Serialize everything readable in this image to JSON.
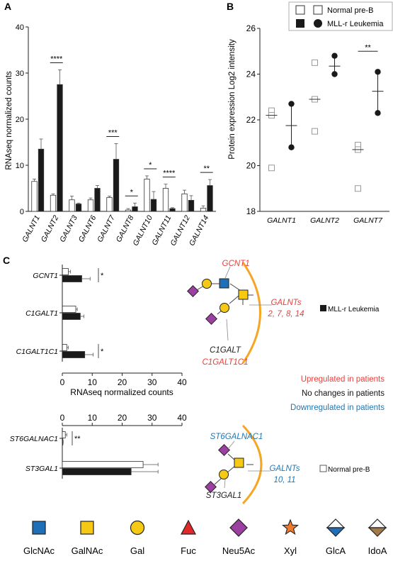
{
  "panel_labels": [
    "A",
    "B",
    "C"
  ],
  "chart_data": [
    {
      "id": "A",
      "type": "bar",
      "ylabel": "RNAseq normalized counts",
      "ylim": [
        0,
        40
      ],
      "yticks": [
        0,
        10,
        20,
        30,
        40
      ],
      "categories": [
        "GALNT1",
        "GALNT2",
        "GALNT3",
        "GALNT6",
        "GALNT7",
        "GALNT8",
        "GALNT10",
        "GALNT11",
        "GALNT12",
        "GALNT14"
      ],
      "series": [
        {
          "name": "Normal pre-B",
          "color": "#ffffff",
          "values": [
            6.5,
            3.5,
            2.5,
            2.5,
            3.0,
            0.3,
            7.0,
            5.0,
            3.8,
            0.7
          ],
          "errors": [
            0.5,
            0.3,
            0.8,
            0.4,
            0.3,
            0.3,
            0.7,
            0.9,
            0.8,
            0.5
          ]
        },
        {
          "name": "MLL-r Leukemia",
          "color": "#1a1a1a",
          "values": [
            13.5,
            27.5,
            1.6,
            5.0,
            11.3,
            1.0,
            2.6,
            0.6,
            2.4,
            5.6
          ],
          "errors": [
            2.2,
            3.2,
            0.2,
            0.6,
            3.4,
            0.8,
            1.7,
            0.2,
            1.0,
            1.3
          ]
        }
      ],
      "significance": [
        {
          "category": "GALNT2",
          "label": "****"
        },
        {
          "category": "GALNT7",
          "label": "***"
        },
        {
          "category": "GALNT8",
          "label": "*"
        },
        {
          "category": "GALNT10",
          "label": "*"
        },
        {
          "category": "GALNT11",
          "label": "****"
        },
        {
          "category": "GALNT14",
          "label": "**"
        }
      ]
    },
    {
      "id": "B",
      "type": "scatter",
      "ylabel": "Protein expression Log2 intensity",
      "ylim": [
        18,
        26
      ],
      "yticks": [
        18,
        20,
        22,
        24,
        26
      ],
      "categories": [
        "GALNT1",
        "GALNT2",
        "GALNT7"
      ],
      "legend": {
        "position": "top-right",
        "normal_label": "Normal pre-B",
        "leukemia_label": "MLL-r Leukemia"
      },
      "series": [
        {
          "name": "Normal pre-B",
          "marker": "open-square",
          "points": [
            [
              22.4,
              22.2,
              19.9
            ],
            [
              24.5,
              22.9,
              21.5
            ],
            [
              20.9,
              20.7,
              19.0
            ]
          ],
          "means": [
            22.2,
            22.9,
            20.7
          ]
        },
        {
          "name": "MLL-r Leukemia",
          "marker": "filled-circle",
          "points": [
            [
              22.7,
              20.8
            ],
            [
              24.8,
              24.0
            ],
            [
              24.1,
              22.3
            ]
          ],
          "means": [
            21.75,
            24.35,
            23.25
          ],
          "sd": [
            0.95,
            0.4,
            0.9
          ]
        }
      ],
      "significance": [
        {
          "category": "GALNT7",
          "label": "**"
        }
      ]
    },
    {
      "id": "C-top",
      "type": "bar",
      "orientation": "horizontal",
      "xlabel": "RNAseq normalized counts",
      "xlim": [
        0,
        40
      ],
      "xticks": [
        0,
        10,
        20,
        30,
        40
      ],
      "categories": [
        "GCNT1",
        "C1GALT1",
        "C1GALT1C1"
      ],
      "series": [
        {
          "name": "Normal pre-B",
          "values": [
            2.0,
            4.5,
            1.5
          ],
          "errors": [
            0.7,
            0.5,
            0.5
          ]
        },
        {
          "name": "MLL-r Leukemia",
          "values": [
            6.5,
            6.0,
            7.5
          ],
          "errors": [
            2.8,
            1.2,
            2.8
          ]
        }
      ],
      "legend_label": "MLL-r Leukemia",
      "significance": [
        {
          "category": "GCNT1",
          "label": "*"
        },
        {
          "category": "C1GALT1C1",
          "label": "*"
        }
      ]
    },
    {
      "id": "C-bottom",
      "type": "bar",
      "orientation": "horizontal",
      "xlim": [
        0,
        40
      ],
      "xticks": [
        0,
        10,
        20,
        30,
        40
      ],
      "categories": [
        "ST6GALNAC1",
        "ST3GAL1"
      ],
      "series": [
        {
          "name": "Normal pre-B",
          "values": [
            1.0,
            27.0
          ],
          "errors": [
            0.5,
            5.0
          ]
        },
        {
          "name": "MLL-r Leukemia",
          "values": [
            0.2,
            23.0
          ],
          "errors": [
            0.1,
            9.0
          ]
        }
      ],
      "legend_label": "Normal pre-B",
      "significance": [
        {
          "category": "ST6GALNAC1",
          "label": "**"
        }
      ]
    }
  ],
  "diagram_top": {
    "gcnt1": "GCNT1",
    "galnts_line1": "GALNTs",
    "galnts_line2": "2, 7, 8, 14",
    "c1galt": "C1GALT",
    "c1galt1c1": "C1GALT1C1"
  },
  "diagram_bottom": {
    "st6galnac1": "ST6GALNAC1",
    "galnts_line1": "GALNTs",
    "galnts_line2": "10, 11",
    "st3gal1": "ST3GAL1"
  },
  "key": {
    "upregulated": "Upregulated in patients",
    "nochange": "No changes in patients",
    "downregulated": "Downregulated in patients"
  },
  "colors": {
    "up": "#e8413c",
    "down": "#1f77b4",
    "membrane": "#f5a623",
    "glcnac": "#1f6fb8",
    "galnac": "#f6c915",
    "gal": "#f6c915",
    "fuc": "#e02828",
    "neu5ac": "#9b3fa0",
    "xyl": "#f07a2a",
    "glca": "#1f6fb8",
    "idoa": "#a57a4b"
  },
  "glycan_legend": [
    "GlcNAc",
    "GalNAc",
    "Gal",
    "Fuc",
    "Neu5Ac",
    "Xyl",
    "GlcA",
    "IdoA"
  ]
}
